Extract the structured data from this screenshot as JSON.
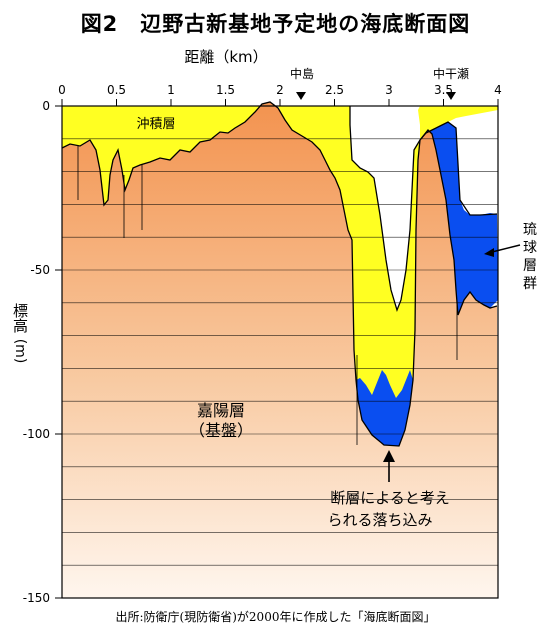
{
  "title": "図2　辺野古新基地予定地の海底断面図",
  "x_axis": {
    "label": "距離（km）",
    "ticks": [
      "0",
      "0.5",
      "1",
      "1.5",
      "2",
      "2.5",
      "3",
      "3.5",
      "4"
    ]
  },
  "y_axis": {
    "label_main": "標高",
    "label_unit": "(m)",
    "ticks": [
      "0",
      "-50",
      "-100",
      "-150"
    ]
  },
  "markers": [
    {
      "label": "中島",
      "at_km": 2.2
    },
    {
      "label": "中干瀬",
      "at_km": 3.6
    }
  ],
  "layers": {
    "okinawa": "沖積層",
    "kayo_line1": "嘉陽層",
    "kayo_line2": "（基盤）",
    "ryukyu": [
      "琉",
      "球",
      "層",
      "群"
    ]
  },
  "annotation": {
    "line1": "断層によると考え",
    "line2": "られる落ち込み"
  },
  "colors": {
    "alluvium": "#ffff22",
    "limestone": "#0a4ef0",
    "basement_top": "#f3934f",
    "basement_bottom": "#fff6ee"
  },
  "source": "出所:防衛庁(現防衛省)が2000年に作成した「海底断面図」"
}
